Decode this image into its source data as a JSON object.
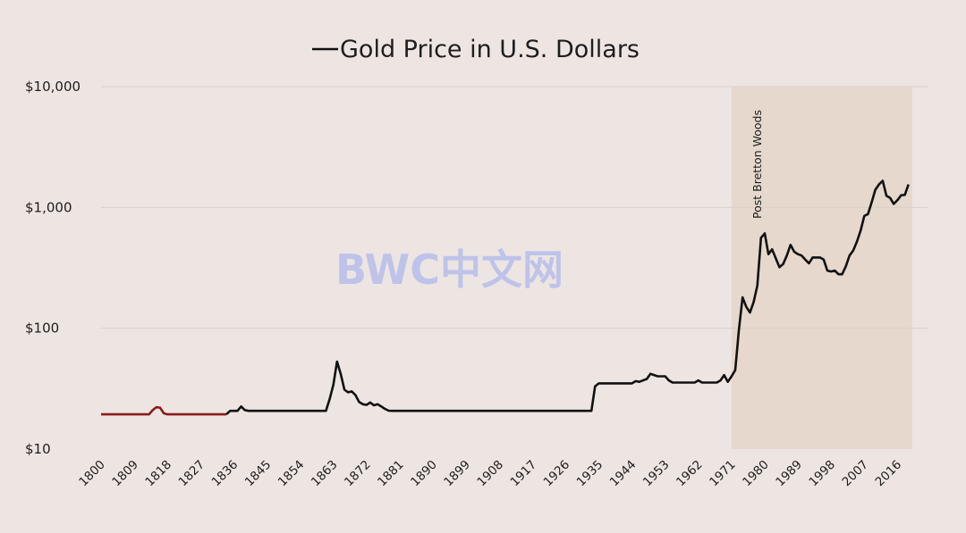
{
  "chart_data": {
    "type": "line",
    "title": "Gold Price in U.S. Dollars",
    "y_scale": "log",
    "ylim": [
      10,
      10000
    ],
    "xlim": [
      1800,
      2020
    ],
    "y_tick_values": [
      10,
      100,
      1000,
      10000
    ],
    "y_tick_labels": [
      "$10",
      "$100",
      "$1,000",
      "$10,000"
    ],
    "x_tick_values": [
      1800,
      1809,
      1818,
      1827,
      1836,
      1845,
      1854,
      1863,
      1872,
      1881,
      1890,
      1899,
      1908,
      1917,
      1926,
      1935,
      1944,
      1953,
      1962,
      1971,
      1980,
      1989,
      1998,
      2007,
      2016
    ],
    "x_tick_labels": [
      "1800",
      "1809",
      "1818",
      "1827",
      "1836",
      "1845",
      "1854",
      "1863",
      "1872",
      "1881",
      "1890",
      "1899",
      "1908",
      "1917",
      "1926",
      "1935",
      "1944",
      "1953",
      "1962",
      "1971",
      "1980",
      "1989",
      "1998",
      "2007",
      "2016"
    ],
    "grid": "horizontal",
    "shaded_region": {
      "from": 1971,
      "to": 2020,
      "label": "Post Bretton Woods",
      "color": "#e6d8cc"
    },
    "colors": {
      "line": "#111111",
      "early_segment": "#8b1a1a",
      "background": "#ede5e2",
      "grid": "#d9d0cc"
    },
    "early_segment_until": 1834,
    "series": [
      {
        "name": "",
        "points": [
          [
            1800,
            19.4
          ],
          [
            1813,
            19.4
          ],
          [
            1814,
            21.0
          ],
          [
            1815,
            22.2
          ],
          [
            1816,
            22.0
          ],
          [
            1817,
            19.8
          ],
          [
            1818,
            19.4
          ],
          [
            1834,
            19.4
          ],
          [
            1835,
            20.7
          ],
          [
            1837,
            20.7
          ],
          [
            1838,
            22.5
          ],
          [
            1839,
            21.0
          ],
          [
            1840,
            20.7
          ],
          [
            1861,
            20.7
          ],
          [
            1862,
            26.0
          ],
          [
            1863,
            34.0
          ],
          [
            1864,
            53.0
          ],
          [
            1865,
            42.0
          ],
          [
            1866,
            31.0
          ],
          [
            1867,
            29.5
          ],
          [
            1868,
            30.0
          ],
          [
            1869,
            28.0
          ],
          [
            1870,
            24.5
          ],
          [
            1871,
            23.5
          ],
          [
            1872,
            23.2
          ],
          [
            1873,
            24.3
          ],
          [
            1874,
            23.0
          ],
          [
            1875,
            23.5
          ],
          [
            1876,
            22.5
          ],
          [
            1877,
            21.5
          ],
          [
            1878,
            20.8
          ],
          [
            1879,
            20.7
          ],
          [
            1933,
            20.7
          ],
          [
            1934,
            33.0
          ],
          [
            1935,
            35.0
          ],
          [
            1944,
            35.0
          ],
          [
            1945,
            36.5
          ],
          [
            1946,
            36.0
          ],
          [
            1947,
            37.0
          ],
          [
            1948,
            38.0
          ],
          [
            1949,
            42.0
          ],
          [
            1950,
            41.0
          ],
          [
            1951,
            40.0
          ],
          [
            1953,
            40.0
          ],
          [
            1954,
            37.0
          ],
          [
            1955,
            35.5
          ],
          [
            1961,
            35.5
          ],
          [
            1962,
            37.0
          ],
          [
            1963,
            35.5
          ],
          [
            1967,
            35.5
          ],
          [
            1968,
            37.0
          ],
          [
            1969,
            41.0
          ],
          [
            1970,
            36.0
          ],
          [
            1971,
            40.0
          ],
          [
            1972,
            45.0
          ],
          [
            1973,
            97.0
          ],
          [
            1974,
            180.0
          ],
          [
            1975,
            150.0
          ],
          [
            1976,
            135.0
          ],
          [
            1977,
            165.0
          ],
          [
            1978,
            225.0
          ],
          [
            1979,
            560.0
          ],
          [
            1980,
            610.0
          ],
          [
            1981,
            410.0
          ],
          [
            1982,
            450.0
          ],
          [
            1983,
            380.0
          ],
          [
            1984,
            320.0
          ],
          [
            1985,
            340.0
          ],
          [
            1986,
            400.0
          ],
          [
            1987,
            490.0
          ],
          [
            1988,
            430.0
          ],
          [
            1989,
            410.0
          ],
          [
            1990,
            400.0
          ],
          [
            1991,
            370.0
          ],
          [
            1992,
            345.0
          ],
          [
            1993,
            385.0
          ],
          [
            1994,
            385.0
          ],
          [
            1995,
            385.0
          ],
          [
            1996,
            370.0
          ],
          [
            1997,
            300.0
          ],
          [
            1998,
            295.0
          ],
          [
            1999,
            300.0
          ],
          [
            2000,
            280.0
          ],
          [
            2001,
            280.0
          ],
          [
            2002,
            325.0
          ],
          [
            2003,
            400.0
          ],
          [
            2004,
            440.0
          ],
          [
            2005,
            520.0
          ],
          [
            2006,
            640.0
          ],
          [
            2007,
            850.0
          ],
          [
            2008,
            880.0
          ],
          [
            2009,
            1100.0
          ],
          [
            2010,
            1400.0
          ],
          [
            2011,
            1550.0
          ],
          [
            2012,
            1660.0
          ],
          [
            2013,
            1250.0
          ],
          [
            2014,
            1200.0
          ],
          [
            2015,
            1070.0
          ],
          [
            2016,
            1150.0
          ],
          [
            2017,
            1260.0
          ],
          [
            2018,
            1270.0
          ],
          [
            2019,
            1550.0
          ]
        ]
      }
    ]
  },
  "watermark": "BWC中文网"
}
